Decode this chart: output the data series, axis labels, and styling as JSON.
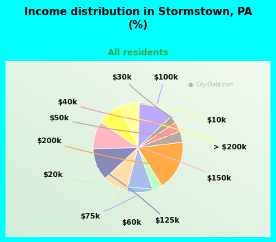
{
  "title": "Income distribution in Stormstown, PA\n(%)",
  "subtitle": "All residents",
  "title_fontsize": 11,
  "subtitle_fontsize": 9,
  "background_color": "#00FFFF",
  "labels": [
    "$10k",
    "> $200k",
    "$150k",
    "$125k",
    "$60k",
    "$75k",
    "$20k",
    "$200k",
    "$50k",
    "$40k",
    "$30k",
    "$100k"
  ],
  "sizes": [
    7.5,
    8.5,
    10.0,
    11.5,
    9.0,
    9.5,
    3.5,
    18.0,
    4.0,
    3.5,
    2.5,
    12.5
  ],
  "colors": [
    "#FFFF99",
    "#FFFF55",
    "#FFB6C1",
    "#8888BB",
    "#FFDDAA",
    "#AABBEE",
    "#BBFFBB",
    "#FFAA44",
    "#BBAA99",
    "#FF9999",
    "#AAAA88",
    "#BBAAFF"
  ],
  "startangle": 88,
  "label_fontsize": 7.5,
  "label_color": "#111111",
  "watermark": "City-Data.com",
  "watermark_color": "#aaaaaa"
}
